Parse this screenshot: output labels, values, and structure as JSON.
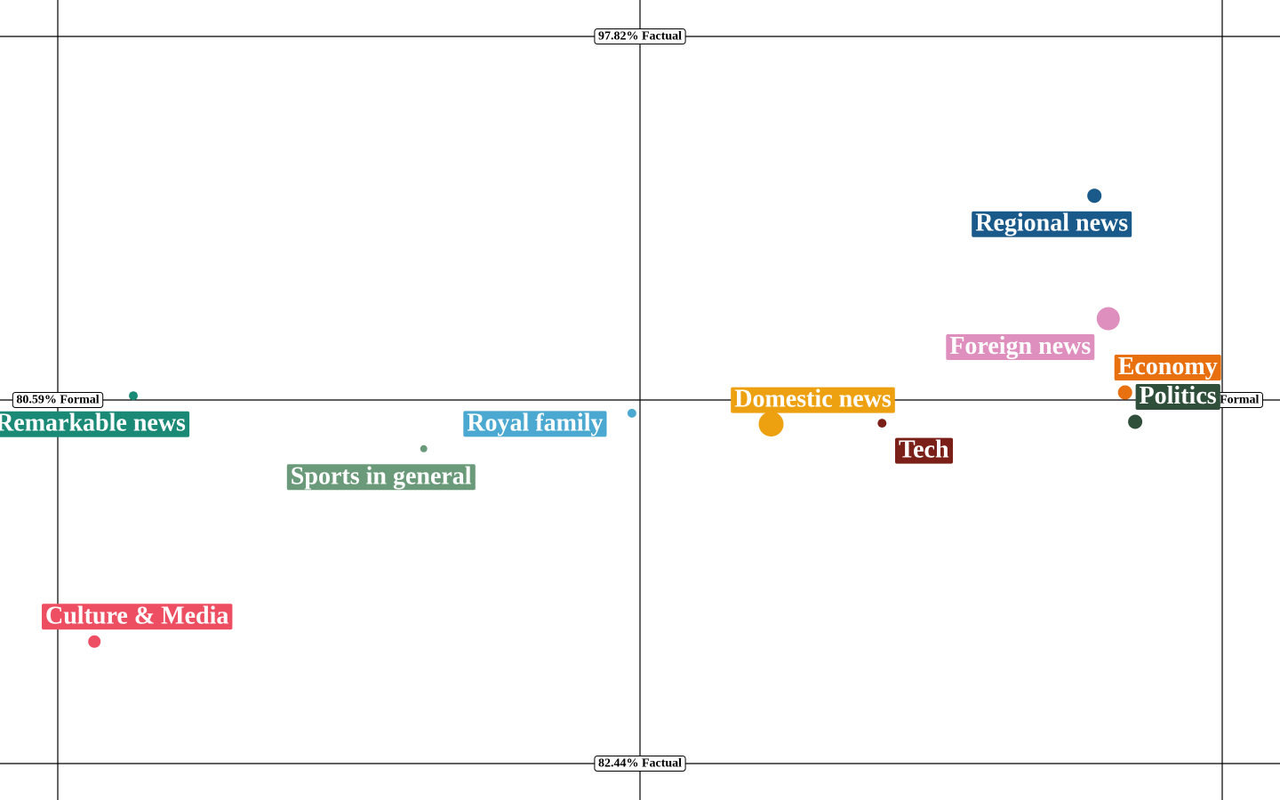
{
  "chart_data": {
    "type": "scatter",
    "title": "",
    "x_axis": {
      "label": "Formal",
      "min": 80.59,
      "max": 100,
      "min_label": "80.59% Formal",
      "max_label": "100% Formal"
    },
    "y_axis": {
      "label": "Factual",
      "min": 82.44,
      "max": 97.82,
      "min_label": "82.44% Factual",
      "max_label": "97.82% Factual"
    },
    "grid": false,
    "legend": "none",
    "points": [
      {
        "label": "Regional news",
        "x": 97.87,
        "y": 94.45,
        "size": 8,
        "color": "#1a5a8a"
      },
      {
        "label": "Foreign news",
        "x": 98.1,
        "y": 91.85,
        "size": 13,
        "color": "#de8fbe"
      },
      {
        "label": "Economy",
        "x": 98.38,
        "y": 90.29,
        "size": 8,
        "color": "#e8700f"
      },
      {
        "label": "Domestic news",
        "x": 92.48,
        "y": 89.62,
        "size": 14,
        "color": "#eda010"
      },
      {
        "label": "Politics",
        "x": 98.55,
        "y": 89.67,
        "size": 8,
        "color": "#2f4f3a"
      },
      {
        "label": "Tech",
        "x": 94.33,
        "y": 89.64,
        "size": 5,
        "color": "#7a2018"
      },
      {
        "label": "Royal family",
        "x": 90.16,
        "y": 89.85,
        "size": 5,
        "color": "#4ba8d0"
      },
      {
        "label": "Sports in general",
        "x": 86.69,
        "y": 89.1,
        "size": 4,
        "color": "#6a9a7a"
      },
      {
        "label": "Remarkable news",
        "x": 81.85,
        "y": 90.22,
        "size": 5,
        "color": "#1a8a76"
      },
      {
        "label": "Culture & Media",
        "x": 81.2,
        "y": 85.02,
        "size": 7,
        "color": "#ee4e62"
      }
    ]
  }
}
